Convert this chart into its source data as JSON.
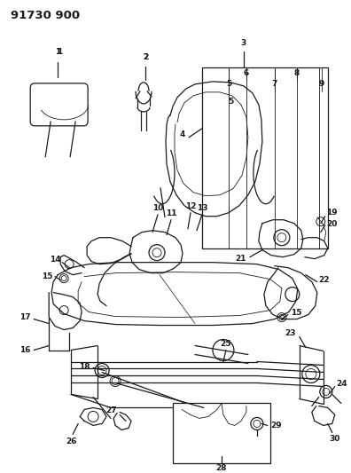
{
  "title": "91730 900",
  "bg_color": "#ffffff",
  "line_color": "#1a1a1a",
  "title_fontsize": 9.5,
  "label_fontsize": 6.5,
  "fig_w": 3.96,
  "fig_h": 5.33,
  "dpi": 100
}
